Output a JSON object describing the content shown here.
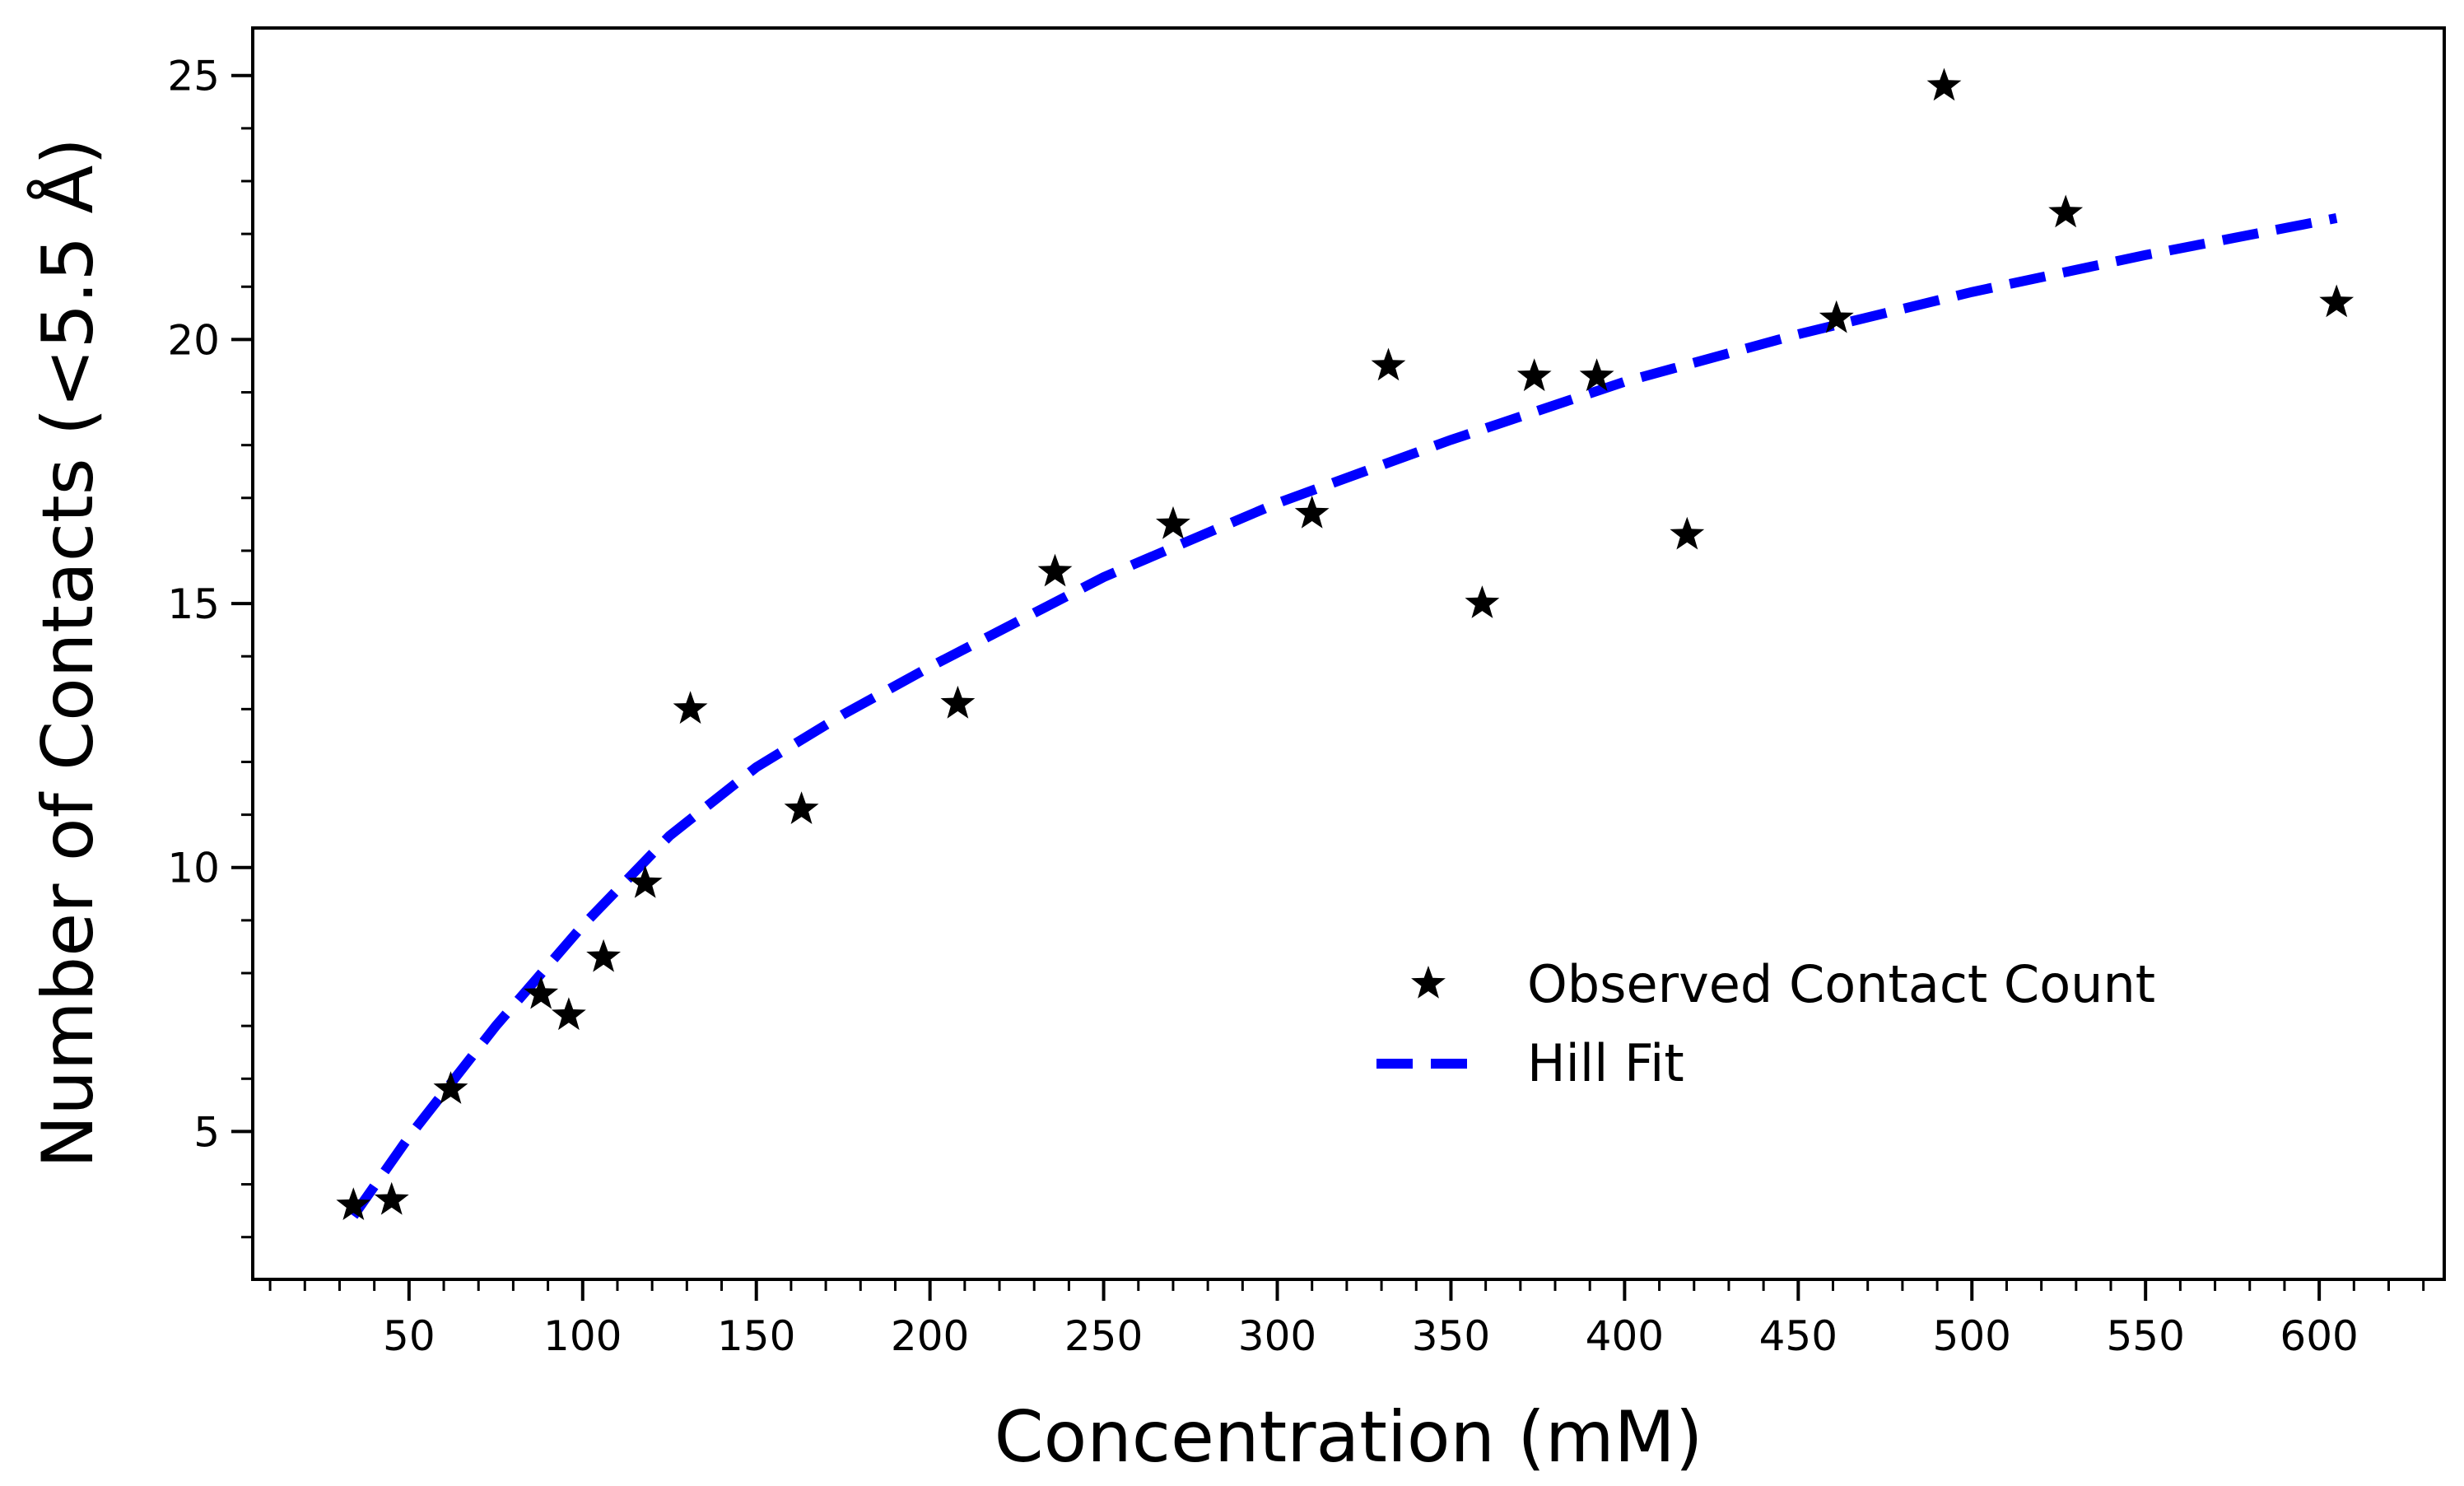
{
  "chart_data": {
    "type": "scatter",
    "title": "",
    "xlabel": "Concentration (mM)",
    "ylabel": "Number of Contacts (<5.5 Å)",
    "xlim": [
      5,
      636
    ],
    "ylim": [
      2.2,
      25.9
    ],
    "x_ticks": [
      50,
      100,
      150,
      200,
      250,
      300,
      350,
      400,
      450,
      500,
      550,
      600
    ],
    "y_ticks": [
      5,
      10,
      15,
      20,
      25
    ],
    "x_minor_step": 10,
    "y_minor_step": 1,
    "grid": false,
    "legend_position": "lower-right",
    "series": [
      {
        "name": "Observed Contact Count",
        "kind": "scatter",
        "marker": "star",
        "color": "#000000",
        "x": [
          34,
          45,
          62,
          88,
          96,
          106,
          118,
          131,
          163,
          208,
          236,
          270,
          310,
          332,
          359,
          374,
          392,
          418,
          461,
          492,
          527,
          605
        ],
        "y": [
          3.6,
          3.7,
          5.8,
          7.6,
          7.2,
          8.3,
          9.7,
          13.0,
          11.1,
          13.1,
          15.6,
          16.5,
          16.7,
          19.5,
          15.0,
          19.3,
          19.3,
          16.3,
          20.4,
          24.8,
          22.4,
          20.7
        ]
      },
      {
        "name": "Hill Fit",
        "kind": "line",
        "style": "dashed",
        "color": "#0000ff",
        "x": [
          34,
          50,
          75,
          100,
          125,
          150,
          175,
          200,
          250,
          300,
          350,
          400,
          450,
          500,
          550,
          605
        ],
        "y": [
          3.4,
          4.9,
          7.0,
          8.9,
          10.6,
          11.9,
          12.9,
          13.8,
          15.5,
          16.9,
          18.1,
          19.2,
          20.1,
          20.9,
          21.6,
          22.3
        ]
      }
    ]
  }
}
